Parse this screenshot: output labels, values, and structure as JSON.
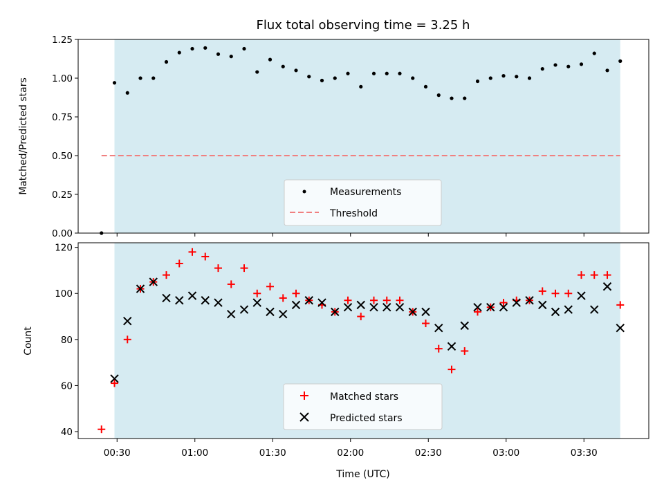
{
  "chart_data": [
    {
      "type": "scatter",
      "title": "Flux total observing time = 3.25 h",
      "ylabel": "Matched/Predicted stars",
      "ylim": [
        0,
        1.25
      ],
      "xlim_minutes": [
        15,
        235
      ],
      "yticks": [
        "0.00",
        "0.25",
        "0.50",
        "0.75",
        "1.00",
        "1.25"
      ],
      "shaded_span_minutes": [
        29,
        224
      ],
      "shade_color": "#add8e6",
      "threshold": {
        "label": "Threshold",
        "value": 0.5,
        "x_range_minutes": [
          24,
          224
        ],
        "color": "#f08080"
      },
      "series": [
        {
          "name": "Measurements",
          "color": "#000000",
          "x_minutes": [
            24,
            29,
            34,
            39,
            44,
            49,
            54,
            59,
            64,
            69,
            74,
            79,
            84,
            89,
            94,
            99,
            104,
            109,
            114,
            119,
            124,
            129,
            134,
            139,
            144,
            149,
            154,
            159,
            164,
            169,
            174,
            179,
            184,
            189,
            194,
            199,
            204,
            209,
            214,
            219,
            224
          ],
          "values": [
            0.0,
            0.97,
            0.905,
            1.0,
            1.0,
            1.105,
            1.165,
            1.19,
            1.195,
            1.155,
            1.14,
            1.19,
            1.04,
            1.12,
            1.075,
            1.05,
            1.01,
            0.985,
            1.0,
            1.03,
            0.945,
            1.03,
            1.03,
            1.03,
            1.0,
            0.945,
            0.89,
            0.87,
            0.87,
            0.98,
            1.0,
            1.015,
            1.01,
            1.0,
            1.06,
            1.085,
            1.075,
            1.09,
            1.16,
            1.05,
            1.11
          ]
        }
      ]
    },
    {
      "type": "scatter",
      "xlabel": "Time (UTC)",
      "ylabel": "Count",
      "ylim": [
        37,
        122
      ],
      "xlim_minutes": [
        15,
        235
      ],
      "yticks": [
        "40",
        "60",
        "80",
        "100",
        "120"
      ],
      "xticks": [
        "00:30",
        "01:00",
        "01:30",
        "02:00",
        "02:30",
        "03:00",
        "03:30"
      ],
      "xtick_minutes": [
        30,
        60,
        90,
        120,
        150,
        180,
        210
      ],
      "shaded_span_minutes": [
        29,
        224
      ],
      "shade_color": "#add8e6",
      "series": [
        {
          "name": "Matched stars",
          "marker": "plus",
          "color": "#ff0000",
          "x_minutes": [
            24,
            29,
            34,
            39,
            44,
            49,
            54,
            59,
            64,
            69,
            74,
            79,
            84,
            89,
            94,
            99,
            104,
            109,
            114,
            119,
            124,
            129,
            134,
            139,
            144,
            149,
            154,
            159,
            164,
            169,
            174,
            179,
            184,
            189,
            194,
            199,
            204,
            209,
            214,
            219,
            224
          ],
          "values": [
            41,
            61,
            80,
            102,
            105,
            108,
            113,
            118,
            116,
            111,
            104,
            111,
            100,
            103,
            98,
            100,
            97,
            95,
            92,
            97,
            90,
            97,
            97,
            97,
            92,
            87,
            76,
            67,
            75,
            92,
            94,
            96,
            97,
            97,
            101,
            100,
            100,
            108,
            108,
            108,
            95
          ]
        },
        {
          "name": "Predicted stars",
          "marker": "x",
          "color": "#000000",
          "x_minutes": [
            29,
            34,
            39,
            44,
            49,
            54,
            59,
            64,
            69,
            74,
            79,
            84,
            89,
            94,
            99,
            104,
            109,
            114,
            119,
            124,
            129,
            134,
            139,
            144,
            149,
            154,
            159,
            164,
            169,
            174,
            179,
            184,
            189,
            194,
            199,
            204,
            209,
            214,
            219,
            224
          ],
          "values": [
            63,
            88,
            102,
            105,
            98,
            97,
            99,
            97,
            96,
            91,
            93,
            96,
            92,
            91,
            95,
            97,
            96,
            92,
            94,
            95,
            94,
            94,
            94,
            92,
            92,
            85,
            77,
            86,
            94,
            94,
            94,
            96,
            97,
            95,
            92,
            93,
            99,
            93,
            103,
            85
          ]
        }
      ]
    }
  ]
}
